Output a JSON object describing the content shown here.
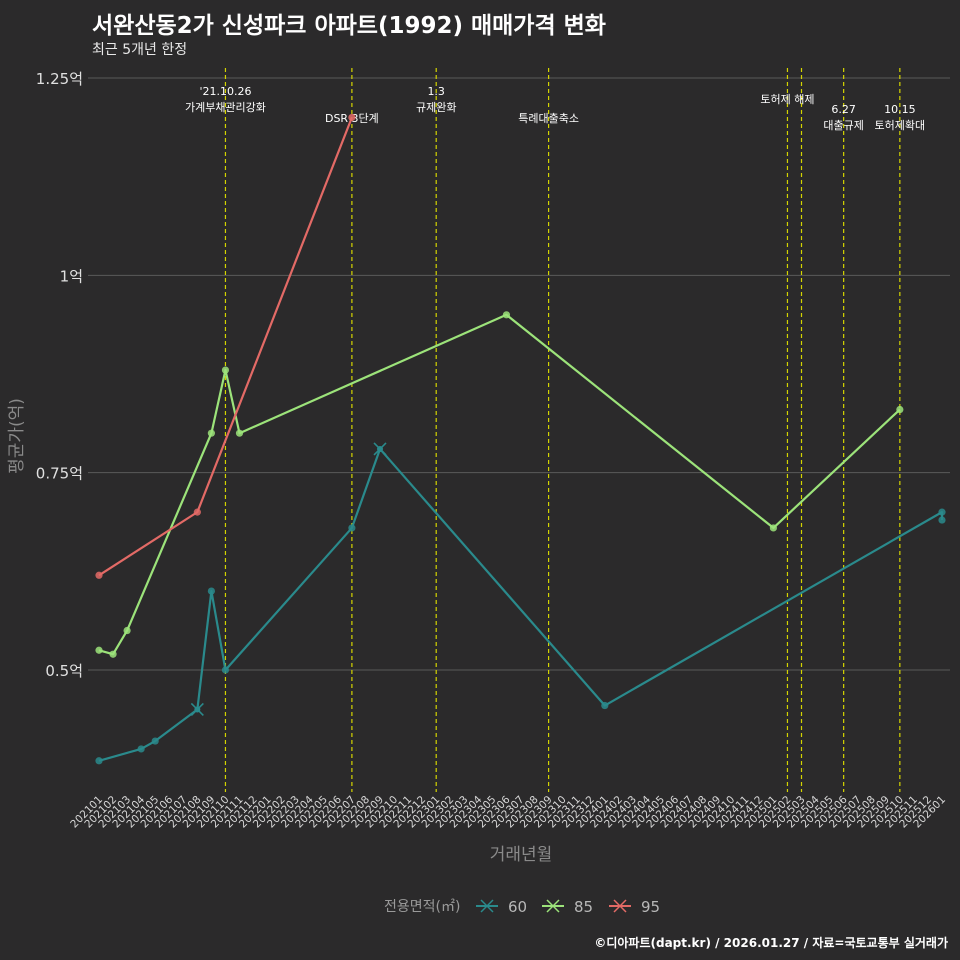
{
  "header": {
    "title": "서완산동2가 신성파크 아파트(1992) 매매가격 변화",
    "subtitle": "최근 5개년 한정"
  },
  "caption": "©디아파트(dapt.kr) / 2026.01.27 / 자료=국토교통부 실거래가",
  "colors": {
    "background": "#2b2a2b",
    "grid": "#5a5a5a",
    "vline": "#d4d400"
  },
  "chart_data": {
    "type": "line",
    "xlabel": "거래년월",
    "ylabel": "평균가(억)",
    "ylim": [
      0.32,
      1.25
    ],
    "y_ticks": [
      {
        "value": 0.5,
        "label": "0.5억"
      },
      {
        "value": 0.75,
        "label": "0.75억"
      },
      {
        "value": 1.0,
        "label": "1억"
      },
      {
        "value": 1.25,
        "label": "1.25억"
      }
    ],
    "categories": [
      "202101",
      "202102",
      "202103",
      "202104",
      "202105",
      "202106",
      "202107",
      "202108",
      "202109",
      "202110",
      "202111",
      "202112",
      "202201",
      "202202",
      "202203",
      "202204",
      "202205",
      "202206",
      "202207",
      "202208",
      "202209",
      "202210",
      "202211",
      "202212",
      "202301",
      "202302",
      "202303",
      "202304",
      "202305",
      "202306",
      "202307",
      "202308",
      "202309",
      "202310",
      "202311",
      "202312",
      "202401",
      "202402",
      "202403",
      "202404",
      "202405",
      "202406",
      "202407",
      "202408",
      "202409",
      "202410",
      "202411",
      "202412",
      "202501",
      "202502",
      "202503",
      "202504",
      "202505",
      "202506",
      "202507",
      "202508",
      "202509",
      "202510",
      "202511",
      "202512",
      "202601"
    ],
    "legend_title": "전용면적(㎡)",
    "legend_position": "bottom",
    "series": [
      {
        "name": "60",
        "color": "#2a8a8c",
        "points": [
          {
            "x": "202101",
            "y": 0.385
          },
          {
            "x": "202104",
            "y": 0.4
          },
          {
            "x": "202105",
            "y": 0.41
          },
          {
            "x": "202108",
            "y": 0.45,
            "marker": "x"
          },
          {
            "x": "202109",
            "y": 0.6
          },
          {
            "x": "202110",
            "y": 0.5
          },
          {
            "x": "202207",
            "y": 0.68
          },
          {
            "x": "202209",
            "y": 0.78,
            "marker": "x"
          },
          {
            "x": "202401",
            "y": 0.455
          },
          {
            "x": "202601",
            "y": 0.7
          },
          {
            "x": "202601",
            "y": 0.69
          }
        ]
      },
      {
        "name": "85",
        "color": "#9ce37a",
        "points": [
          {
            "x": "202101",
            "y": 0.525
          },
          {
            "x": "202102",
            "y": 0.52
          },
          {
            "x": "202103",
            "y": 0.55
          },
          {
            "x": "202109",
            "y": 0.8
          },
          {
            "x": "202110",
            "y": 0.88
          },
          {
            "x": "202111",
            "y": 0.8
          },
          {
            "x": "202306",
            "y": 0.95
          },
          {
            "x": "202501",
            "y": 0.68
          },
          {
            "x": "202510",
            "y": 0.83
          }
        ]
      },
      {
        "name": "95",
        "color": "#e36a66",
        "points": [
          {
            "x": "202101",
            "y": 0.62
          },
          {
            "x": "202108",
            "y": 0.7
          },
          {
            "x": "202207",
            "y": 1.2
          }
        ]
      }
    ],
    "annotations": [
      {
        "x": "202110",
        "lines": [
          "'21.10.26",
          "가계부채관리강화"
        ]
      },
      {
        "x": "202207",
        "lines": [
          "DSR 3단계"
        ]
      },
      {
        "x": "202301",
        "lines": [
          "1.3",
          "규제완화"
        ]
      },
      {
        "x": "202309",
        "lines": [
          "특례대출축소"
        ]
      },
      {
        "x": "202502",
        "lines": [
          "토허제 해제"
        ]
      },
      {
        "x": "202503",
        "lines": []
      },
      {
        "x": "202506",
        "lines": [
          "6.27",
          "대출규제"
        ]
      },
      {
        "x": "202510",
        "lines": [
          "10.15",
          "토허제확대"
        ]
      }
    ]
  }
}
